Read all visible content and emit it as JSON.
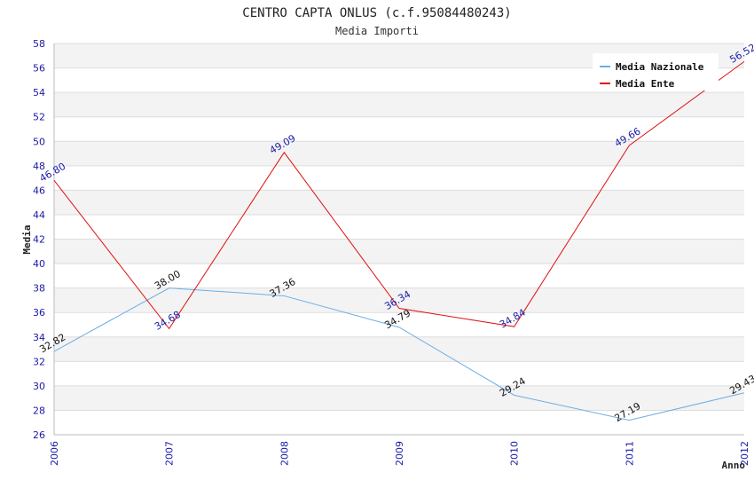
{
  "chart_data": {
    "type": "line",
    "title": "CENTRO CAPTA ONLUS (c.f.95084480243)",
    "subtitle": "Media Importi",
    "xlabel": "Anno",
    "ylabel": "Media",
    "x": [
      "2006",
      "2007",
      "2008",
      "2009",
      "2010",
      "2011",
      "2012"
    ],
    "ylim": [
      26,
      58
    ],
    "yticks": [
      26,
      28,
      30,
      32,
      34,
      36,
      38,
      40,
      42,
      44,
      46,
      48,
      50,
      52,
      54,
      56,
      58
    ],
    "grid": "horizontal alternating bands",
    "legend_position": "top-right",
    "series": [
      {
        "name": "Media Nazionale",
        "color": "#6aaee6",
        "values": [
          32.82,
          38.0,
          37.36,
          34.79,
          29.24,
          27.19,
          29.43
        ],
        "labels": [
          "32.82",
          "38.00",
          "37.36",
          "34.79",
          "29.24",
          "27.19",
          "29.43"
        ]
      },
      {
        "name": "Media Ente",
        "color": "#e01010",
        "values": [
          46.8,
          34.68,
          49.09,
          36.34,
          34.84,
          49.66,
          56.52
        ],
        "labels": [
          "46.80",
          "34.68",
          "49.09",
          "36.34",
          "34.84",
          "49.66",
          "56.52"
        ]
      }
    ]
  }
}
